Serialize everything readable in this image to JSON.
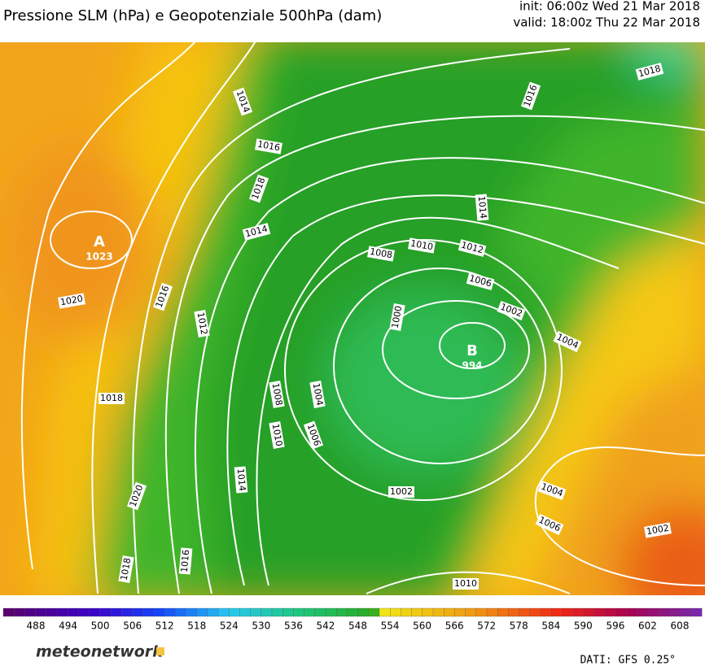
{
  "header": {
    "title": "Pressione SLM (hPa) e Geopotenziale 500hPa (dam)",
    "init": "init: 06:00z Wed 21 Mar 2018",
    "valid": "valid: 18:00z Thu 22 Mar 2018"
  },
  "centers": [
    {
      "symbol": "A",
      "value": "1023"
    },
    {
      "symbol": "B",
      "value": "994"
    }
  ],
  "isobar_labels": [
    "1014",
    "1016",
    "1018",
    "1014",
    "1016",
    "1012",
    "1020",
    "1018",
    "1008",
    "1010",
    "1004",
    "1006",
    "1014",
    "1020",
    "1018",
    "1016",
    "1002",
    "1000",
    "1008",
    "1010",
    "1012",
    "1006",
    "1002",
    "1004",
    "1014",
    "1016",
    "1018",
    "1004",
    "1006",
    "1002",
    "1010"
  ],
  "colorbar": {
    "labels": [
      "488",
      "494",
      "500",
      "506",
      "512",
      "518",
      "524",
      "530",
      "536",
      "542",
      "548",
      "554",
      "560",
      "566",
      "572",
      "578",
      "584",
      "590",
      "596",
      "602",
      "608"
    ]
  },
  "footer": {
    "logo": "meteonetwork",
    "source": "DATI: GFS 0.25°"
  }
}
